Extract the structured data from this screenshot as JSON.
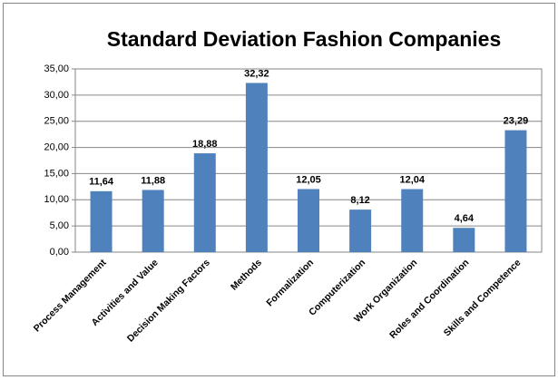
{
  "chart_data": {
    "type": "bar",
    "title": "Standard Deviation Fashion Companies",
    "categories": [
      "Process Management",
      "Activities and Value",
      "Decision Making Factors",
      "Methods",
      "Formalization",
      "Computerization",
      "Work Organization",
      "Roles and Coordination",
      "Skills and Competence"
    ],
    "values": [
      11.64,
      11.88,
      18.88,
      32.32,
      12.05,
      8.12,
      12.04,
      4.64,
      23.29
    ],
    "value_labels": [
      "11,64",
      "11,88",
      "18,88",
      "32,32",
      "12,05",
      "8,12",
      "12,04",
      "4,64",
      "23,29"
    ],
    "color": "#4f81bd",
    "ylim": [
      0,
      35
    ],
    "yticks": [
      {
        "value": 0,
        "label": "0,00"
      },
      {
        "value": 5,
        "label": "5,00"
      },
      {
        "value": 10,
        "label": "10,00"
      },
      {
        "value": 15,
        "label": "15,00"
      },
      {
        "value": 20,
        "label": "20,00"
      },
      {
        "value": 25,
        "label": "25,00"
      },
      {
        "value": 30,
        "label": "30,00"
      },
      {
        "value": 35,
        "label": "35,00"
      }
    ],
    "grid": true
  }
}
